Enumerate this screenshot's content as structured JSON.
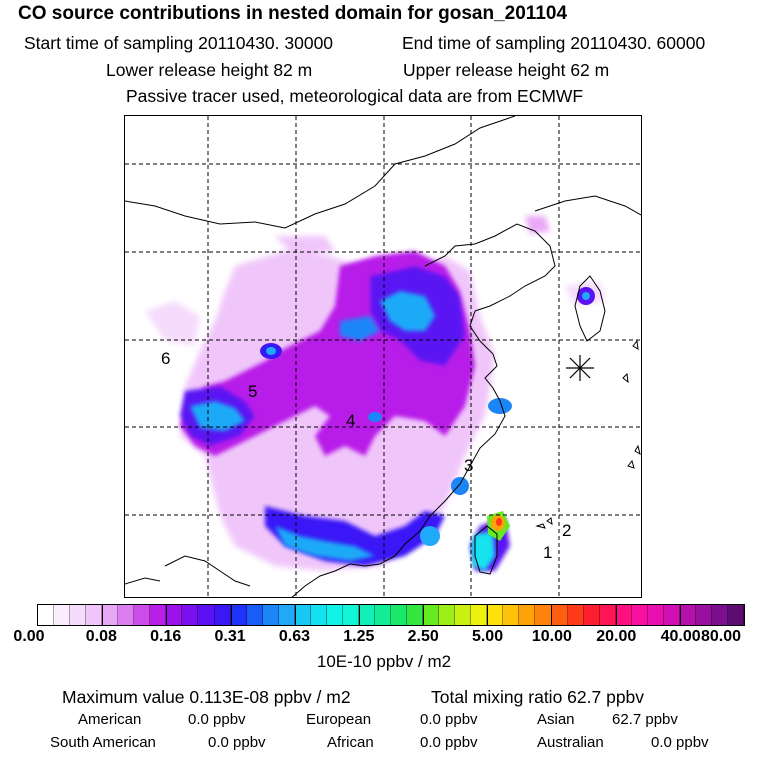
{
  "header": {
    "title": "CO  source contributions in nested domain for gosan_201104",
    "start_label": "Start time of sampling 20110430. 30000",
    "end_label": "End time of sampling 20110430. 60000",
    "lower_release": "Lower release height   82 m",
    "upper_release": "Upper release height   62 m",
    "tracer_note": "Passive tracer used, meteorological data are from ECMWF"
  },
  "map": {
    "region_labels": [
      "1",
      "2",
      "3",
      "4",
      "5",
      "6"
    ],
    "receptor_marker": "gosan-receptor-star"
  },
  "colorbar": {
    "ticks": [
      "0.00",
      "0.08",
      "0.16",
      "0.31",
      "0.63",
      "1.25",
      "2.50",
      "5.00",
      "10.00",
      "20.00",
      "40.00",
      "80.00"
    ],
    "colors": [
      "#ffffff",
      "#fbeefe",
      "#f6dcfc",
      "#f0c6fa",
      "#e9a8f6",
      "#de7cf1",
      "#cf4cec",
      "#b81fe8",
      "#9c12ea",
      "#7a10ee",
      "#5a12f2",
      "#3a18f6",
      "#1f34f8",
      "#1b5cf8",
      "#1c86f8",
      "#1eaaf8",
      "#1ac8f6",
      "#14e2f0",
      "#10f2e6",
      "#10f5d4",
      "#10f0b8",
      "#14ec94",
      "#1ae86a",
      "#34e640",
      "#66ea22",
      "#9cee16",
      "#caf012",
      "#eef010",
      "#ffe20c",
      "#ffc20a",
      "#ffa20a",
      "#ff820c",
      "#ff5e12",
      "#ff3a1a",
      "#ff1e30",
      "#ff1458",
      "#ff1080",
      "#f810a0",
      "#e810b0",
      "#d010b4",
      "#b410ac",
      "#98109e",
      "#7c108c",
      "#5e0c72"
    ],
    "units": "10E-10 ppbv / m2"
  },
  "stats": {
    "max_value": "Maximum value  0.113E-08 ppbv / m2",
    "total_mixing": "Total mixing ratio       62.7 ppbv",
    "american_label": "American",
    "american_value": "0.0 ppbv",
    "european_label": "European",
    "european_value": "0.0 ppbv",
    "asian_label": "Asian",
    "asian_value": "62.7 ppbv",
    "south_american_label": "South American",
    "south_american_value": "0.0 ppbv",
    "african_label": "African",
    "african_value": "0.0 ppbv",
    "australian_label": "Australian",
    "australian_value": "0.0 ppbv"
  }
}
